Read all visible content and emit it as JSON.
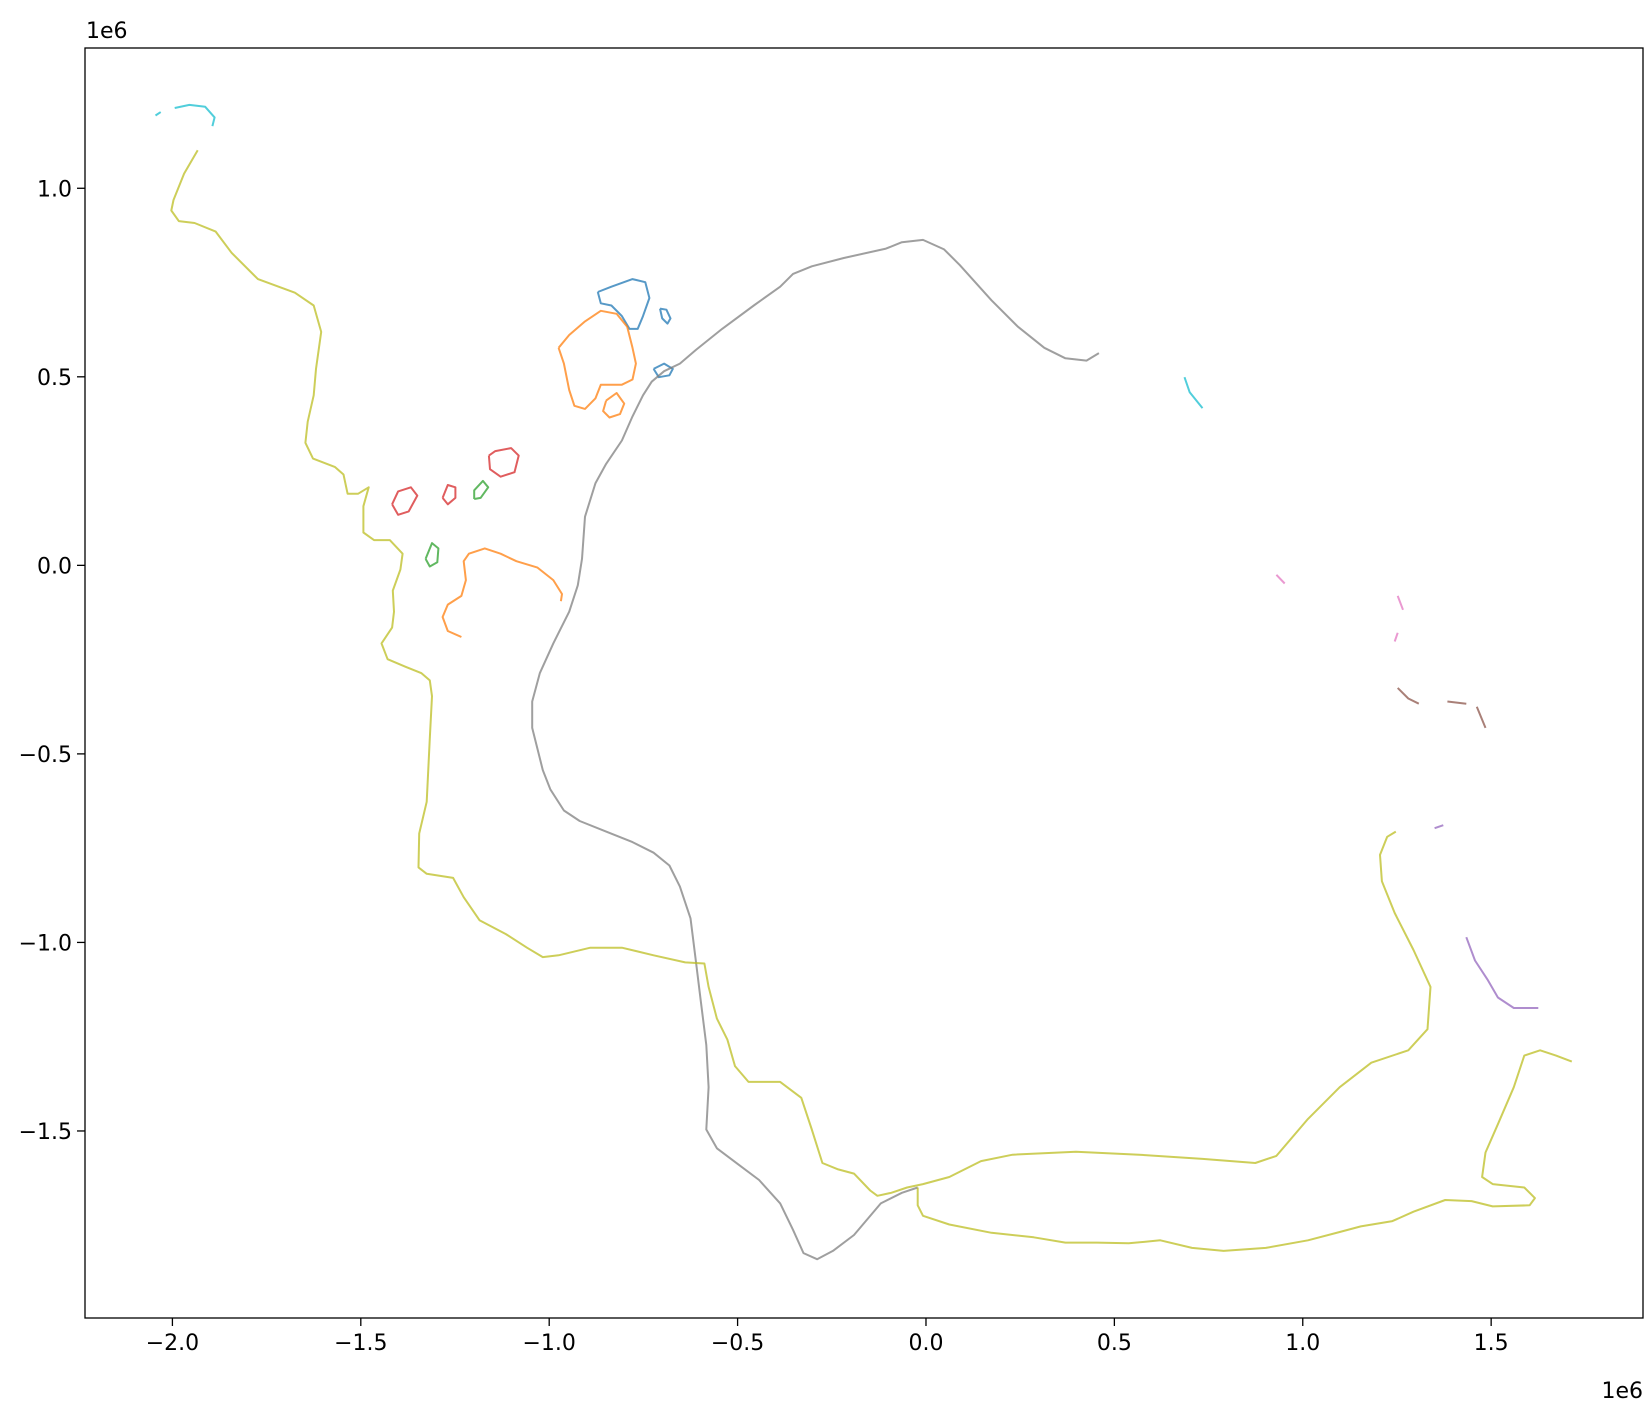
{
  "chart_data": {
    "type": "line",
    "x_offset_label": "1e6",
    "y_offset_label": "1e6",
    "xlim": [
      -2.232,
      1.903
    ],
    "ylim": [
      -1.996,
      1.372
    ],
    "xticks": [
      {
        "value": -2,
        "label": "−2.0"
      },
      {
        "value": -1.5,
        "label": "−1.5"
      },
      {
        "value": -1,
        "label": "−1.0"
      },
      {
        "value": -0.5,
        "label": "−0.5"
      },
      {
        "value": 0,
        "label": "0.0"
      },
      0.5,
      {
        "value": 1,
        "label": "1.0"
      },
      1.5
    ],
    "yticks": [
      {
        "value": -1.5,
        "label": "−1.5"
      },
      {
        "value": -1,
        "label": "−1.0"
      },
      {
        "value": -0.5,
        "label": "−0.5"
      },
      {
        "value": 0,
        "label": "0.0"
      },
      0.5,
      {
        "value": 1,
        "label": "1.0"
      }
    ],
    "series": [
      {
        "color": "#1f77b4",
        "x": [
          -0.871,
          -0.863,
          -0.835,
          -0.807,
          -0.787,
          -0.765,
          -0.751,
          -0.734,
          -0.745,
          -0.779,
          -0.835,
          -0.871,
          null,
          -0.706,
          -0.7,
          -0.686,
          -0.678,
          -0.689,
          -0.706,
          null,
          -0.723,
          -0.709,
          -0.681,
          -0.672,
          -0.695,
          -0.723
        ],
        "values": [
          0.725,
          0.695,
          0.689,
          0.661,
          0.627,
          0.627,
          0.661,
          0.709,
          0.751,
          0.759,
          0.739,
          0.725,
          null,
          0.681,
          0.655,
          0.641,
          0.655,
          0.678,
          0.681,
          null,
          0.521,
          0.499,
          0.504,
          0.521,
          0.535,
          0.521
        ]
      },
      {
        "color": "#ff7f0e",
        "x": [
          -0.975,
          -0.961,
          -0.947,
          -0.933,
          -0.905,
          -0.877,
          -0.863,
          -0.807,
          -0.779,
          -0.77,
          -0.779,
          -0.793,
          -0.821,
          -0.863,
          -0.905,
          -0.947,
          -0.975,
          null,
          -0.849,
          -0.857,
          -0.84,
          -0.812,
          -0.801,
          -0.821,
          -0.849,
          null,
          -1.233,
          -1.269,
          -1.283,
          -1.269,
          -1.233,
          -1.221,
          -1.227,
          -1.213,
          -1.171,
          -1.129,
          -1.087,
          -1.031,
          -0.989,
          -0.966,
          -0.969
        ],
        "values": [
          0.577,
          0.535,
          0.465,
          0.423,
          0.415,
          0.443,
          0.479,
          0.479,
          0.493,
          0.535,
          0.577,
          0.633,
          0.667,
          0.675,
          0.647,
          0.611,
          0.577,
          null,
          0.437,
          0.409,
          0.392,
          0.401,
          0.429,
          0.457,
          0.437,
          null,
          -0.19,
          -0.174,
          -0.137,
          -0.104,
          -0.081,
          -0.039,
          0.011,
          0.031,
          0.045,
          0.031,
          0.011,
          -0.006,
          -0.039,
          -0.076,
          -0.095
        ]
      },
      {
        "color": "#2ca02c",
        "x": [
          -1.199,
          -1.182,
          -1.162,
          -1.176,
          -1.199,
          -1.199,
          null,
          -1.328,
          -1.317,
          -1.297,
          -1.294,
          -1.311,
          -1.328
        ],
        "values": [
          0.176,
          0.179,
          0.207,
          0.224,
          0.199,
          0.176,
          null,
          0.017,
          -0.003,
          0.008,
          0.045,
          0.059,
          0.017
        ]
      },
      {
        "color": "#d62728",
        "x": [
          -1.16,
          -1.157,
          -1.129,
          -1.092,
          -1.081,
          -1.101,
          -1.143,
          -1.16,
          null,
          -1.417,
          -1.401,
          -1.373,
          -1.35,
          -1.367,
          -1.401,
          -1.417,
          null,
          -1.283,
          -1.269,
          -1.249,
          -1.249,
          -1.269,
          -1.283
        ],
        "values": [
          0.291,
          0.255,
          0.235,
          0.247,
          0.291,
          0.311,
          0.303,
          0.291,
          null,
          0.162,
          0.134,
          0.143,
          0.185,
          0.207,
          0.196,
          0.162,
          null,
          0.179,
          0.162,
          0.179,
          0.207,
          0.213,
          0.179
        ]
      },
      {
        "color": "#9467bd",
        "x": [
          1.434,
          1.457,
          1.49,
          1.518,
          1.56,
          1.625,
          null,
          1.35,
          1.373
        ],
        "values": [
          -0.986,
          -1.048,
          -1.098,
          -1.146,
          -1.174,
          -1.174,
          null,
          -0.697,
          -0.689
        ]
      },
      {
        "color": "#8c564b",
        "x": [
          1.252,
          1.28,
          1.308,
          null,
          1.384,
          1.434,
          null,
          1.462,
          1.485
        ],
        "values": [
          -0.325,
          -0.353,
          -0.367,
          null,
          -0.361,
          -0.367,
          null,
          -0.375,
          -0.431
        ]
      },
      {
        "color": "#e377c2",
        "x": [
          0.93,
          0.952,
          null,
          1.252,
          1.266,
          null,
          1.252,
          1.244
        ],
        "values": [
          -0.025,
          -0.048,
          null,
          -0.081,
          -0.118,
          null,
          -0.179,
          -0.202
        ]
      },
      {
        "color": "#7f7f7f",
        "x": [
          0.459,
          0.426,
          0.37,
          0.314,
          0.244,
          0.174,
          0.09,
          0.048,
          -0.008,
          -0.064,
          -0.106,
          -0.218,
          -0.303,
          -0.353,
          -0.387,
          -0.457,
          -0.541,
          -0.611,
          -0.653,
          -0.695,
          -0.728,
          -0.751,
          -0.779,
          -0.807,
          -0.849,
          -0.877,
          -0.905,
          -0.913,
          -0.924,
          -0.947,
          -0.989,
          -1.025,
          -1.045,
          -1.045,
          -1.031,
          -1.017,
          -0.997,
          -0.961,
          -0.919,
          -0.849,
          -0.779,
          -0.723,
          -0.681,
          -0.653,
          -0.625,
          -0.611,
          -0.597,
          -0.583,
          -0.577,
          -0.583,
          -0.555,
          -0.499,
          -0.443,
          -0.387,
          -0.353,
          -0.325,
          -0.289,
          -0.247,
          -0.191,
          -0.12,
          -0.064,
          -0.022
        ],
        "values": [
          0.563,
          0.543,
          0.549,
          0.577,
          0.633,
          0.703,
          0.796,
          0.838,
          0.863,
          0.857,
          0.84,
          0.815,
          0.793,
          0.773,
          0.739,
          0.689,
          0.627,
          0.571,
          0.535,
          0.515,
          0.487,
          0.451,
          0.395,
          0.331,
          0.269,
          0.218,
          0.129,
          0.017,
          -0.053,
          -0.123,
          -0.207,
          -0.286,
          -0.361,
          -0.431,
          -0.487,
          -0.543,
          -0.594,
          -0.65,
          -0.678,
          -0.706,
          -0.734,
          -0.762,
          -0.796,
          -0.852,
          -0.936,
          -1.048,
          -1.16,
          -1.272,
          -1.384,
          -1.496,
          -1.546,
          -1.588,
          -1.63,
          -1.692,
          -1.762,
          -1.824,
          -1.84,
          -1.818,
          -1.776,
          -1.692,
          -1.664,
          -1.65
        ]
      },
      {
        "color": "#bcbd22",
        "x": [
          -1.933,
          -1.969,
          -1.997,
          -2.003,
          -1.983,
          -1.941,
          -1.885,
          -1.843,
          -1.773,
          -1.675,
          -1.625,
          -1.605,
          -1.619,
          -1.625,
          -1.641,
          -1.647,
          -1.627,
          -1.569,
          -1.546,
          -1.535,
          -1.507,
          -1.479,
          -1.493,
          -1.493,
          -1.465,
          -1.423,
          -1.389,
          -1.395,
          -1.415,
          -1.412,
          -1.417,
          -1.445,
          -1.429,
          -1.381,
          -1.339,
          -1.317,
          -1.311,
          -1.317,
          -1.325,
          -1.345,
          -1.347,
          -1.325,
          -1.255,
          -1.227,
          -1.185,
          -1.115,
          -1.059,
          -1.017,
          -0.975,
          -0.891,
          -0.807,
          -0.723,
          -0.639,
          -0.588,
          -0.577,
          -0.555,
          -0.527,
          -0.507,
          -0.471,
          -0.387,
          -0.331,
          -0.303,
          -0.275,
          -0.233,
          -0.191,
          -0.148,
          -0.129,
          -0.092,
          -0.05,
          -0.008,
          0.062,
          0.146,
          0.23,
          0.398,
          0.566,
          0.734,
          0.874,
          0.93,
          1.014,
          1.098,
          1.182,
          1.28,
          1.331,
          1.339,
          1.294,
          1.244,
          1.21,
          1.205,
          1.224,
          1.247,
          null,
          1.714,
          1.672,
          1.63,
          1.588,
          1.56,
          1.518,
          1.485,
          1.476,
          1.504,
          1.588,
          1.616,
          1.602,
          1.504,
          1.448,
          1.378,
          1.294,
          1.238,
          1.154,
          1.098,
          1.014,
          0.902,
          0.79,
          0.706,
          0.622,
          0.538,
          0.454,
          0.37,
          0.286,
          0.174,
          0.062,
          -0.008,
          -0.022,
          -0.022
        ],
        "values": [
          1.101,
          1.039,
          0.969,
          0.941,
          0.913,
          0.908,
          0.885,
          0.829,
          0.759,
          0.723,
          0.689,
          0.619,
          0.521,
          0.451,
          0.381,
          0.325,
          0.283,
          0.261,
          0.241,
          0.19,
          0.19,
          0.207,
          0.157,
          0.087,
          0.067,
          0.067,
          0.031,
          -0.011,
          -0.067,
          -0.123,
          -0.165,
          -0.207,
          -0.249,
          -0.269,
          -0.286,
          -0.305,
          -0.347,
          -0.459,
          -0.627,
          -0.711,
          -0.801,
          -0.818,
          -0.829,
          -0.88,
          -0.941,
          -0.978,
          -1.014,
          -1.039,
          -1.034,
          -1.014,
          -1.014,
          -1.034,
          -1.053,
          -1.056,
          -1.118,
          -1.202,
          -1.258,
          -1.328,
          -1.37,
          -1.37,
          -1.412,
          -1.496,
          -1.585,
          -1.602,
          -1.613,
          -1.658,
          -1.672,
          -1.664,
          -1.65,
          -1.641,
          -1.622,
          -1.58,
          -1.563,
          -1.555,
          -1.563,
          -1.574,
          -1.585,
          -1.566,
          -1.468,
          -1.384,
          -1.319,
          -1.286,
          -1.23,
          -1.118,
          -1.02,
          -0.922,
          -0.838,
          -0.768,
          -0.72,
          -0.706,
          null,
          -1.316,
          -1.3,
          -1.286,
          -1.3,
          -1.384,
          -1.482,
          -1.557,
          -1.622,
          -1.641,
          -1.65,
          -1.678,
          -1.697,
          -1.7,
          -1.686,
          -1.683,
          -1.714,
          -1.739,
          -1.753,
          -1.768,
          -1.79,
          -1.81,
          -1.818,
          -1.81,
          -1.79,
          -1.798,
          -1.796,
          -1.796,
          -1.782,
          -1.77,
          -1.748,
          -1.725,
          -1.697,
          -1.65
        ]
      },
      {
        "color": "#17becf",
        "x": [
          -2.045,
          -2.031,
          null,
          -1.994,
          -1.955,
          -1.913,
          -1.888,
          -1.894,
          null,
          0.686,
          0.7,
          0.734
        ],
        "values": [
          1.193,
          1.202,
          null,
          1.213,
          1.221,
          1.216,
          1.188,
          1.165,
          null,
          0.499,
          0.459,
          0.417
        ]
      }
    ]
  }
}
